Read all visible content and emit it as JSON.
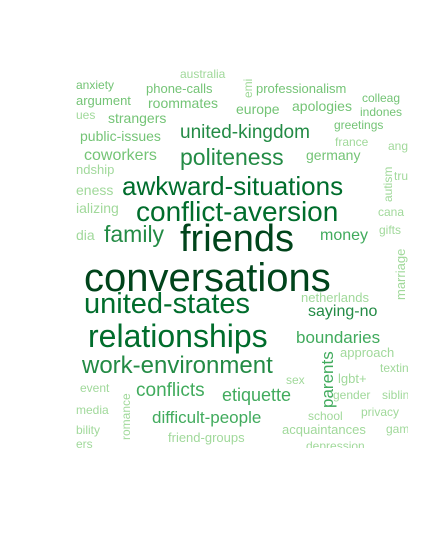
{
  "colors": {
    "darkest": "#00441b",
    "dark": "#006d2c",
    "medium_dark": "#238b45",
    "medium": "#41ab5d",
    "light": "#74c476",
    "lighter": "#a1d99b"
  },
  "words": [
    {
      "text": "conversations",
      "color": "#00441b"
    },
    {
      "text": "friends",
      "color": "#00441b"
    },
    {
      "text": "relationships",
      "color": "#006d2c"
    },
    {
      "text": "united-states",
      "color": "#006d2c"
    },
    {
      "text": "conflict-aversion",
      "color": "#006d2c"
    },
    {
      "text": "awkward-situations",
      "color": "#006d2c"
    },
    {
      "text": "work-environment",
      "color": "#238b45"
    },
    {
      "text": "family",
      "color": "#238b45"
    },
    {
      "text": "politeness",
      "color": "#238b45"
    },
    {
      "text": "united-kingdom",
      "color": "#238b45"
    },
    {
      "text": "saying-no",
      "color": "#238b45"
    },
    {
      "text": "boundaries",
      "color": "#41ab5d"
    },
    {
      "text": "money",
      "color": "#41ab5d"
    },
    {
      "text": "etiquette",
      "color": "#41ab5d"
    },
    {
      "text": "conflicts",
      "color": "#41ab5d"
    },
    {
      "text": "difficult-people",
      "color": "#41ab5d"
    },
    {
      "text": "parents",
      "color": "#41ab5d"
    },
    {
      "text": "germany",
      "color": "#74c476"
    },
    {
      "text": "coworkers",
      "color": "#74c476"
    },
    {
      "text": "public-issues",
      "color": "#74c476"
    },
    {
      "text": "strangers",
      "color": "#74c476"
    },
    {
      "text": "roommates",
      "color": "#74c476"
    },
    {
      "text": "europe",
      "color": "#74c476"
    },
    {
      "text": "apologies",
      "color": "#74c476"
    },
    {
      "text": "professionalism",
      "color": "#74c476"
    },
    {
      "text": "phone-calls",
      "color": "#74c476"
    },
    {
      "text": "argument",
      "color": "#74c476"
    },
    {
      "text": "anxiety",
      "color": "#74c476"
    },
    {
      "text": "colleag",
      "color": "#74c476"
    },
    {
      "text": "indones",
      "color": "#74c476"
    },
    {
      "text": "greetings",
      "color": "#74c476"
    },
    {
      "text": "france",
      "color": "#a1d99b"
    },
    {
      "text": "ang",
      "color": "#a1d99b"
    },
    {
      "text": "autism",
      "color": "#a1d99b"
    },
    {
      "text": "tru",
      "color": "#a1d99b"
    },
    {
      "text": "cana",
      "color": "#a1d99b"
    },
    {
      "text": "gifts",
      "color": "#a1d99b"
    },
    {
      "text": "marriage",
      "color": "#a1d99b"
    },
    {
      "text": "netherlands",
      "color": "#a1d99b"
    },
    {
      "text": "approach",
      "color": "#a1d99b"
    },
    {
      "text": "textin",
      "color": "#a1d99b"
    },
    {
      "text": "lgbt+",
      "color": "#a1d99b"
    },
    {
      "text": "gender",
      "color": "#a1d99b"
    },
    {
      "text": "siblin",
      "color": "#a1d99b"
    },
    {
      "text": "sex",
      "color": "#a1d99b"
    },
    {
      "text": "privacy",
      "color": "#a1d99b"
    },
    {
      "text": "school",
      "color": "#a1d99b"
    },
    {
      "text": "acquaintances",
      "color": "#a1d99b"
    },
    {
      "text": "gam",
      "color": "#a1d99b"
    },
    {
      "text": "friend-groups",
      "color": "#a1d99b"
    },
    {
      "text": "depression",
      "color": "#a1d99b"
    },
    {
      "text": "event",
      "color": "#a1d99b"
    },
    {
      "text": "media",
      "color": "#a1d99b"
    },
    {
      "text": "bility",
      "color": "#a1d99b"
    },
    {
      "text": "ers",
      "color": "#a1d99b"
    },
    {
      "text": "romance",
      "color": "#a1d99b"
    },
    {
      "text": "dia",
      "color": "#a1d99b"
    },
    {
      "text": "ializing",
      "color": "#a1d99b"
    },
    {
      "text": "eness",
      "color": "#a1d99b"
    },
    {
      "text": "ndship",
      "color": "#a1d99b"
    },
    {
      "text": "ues",
      "color": "#a1d99b"
    },
    {
      "text": "emi",
      "color": "#a1d99b"
    },
    {
      "text": "australia",
      "color": "#a1d99b"
    }
  ]
}
